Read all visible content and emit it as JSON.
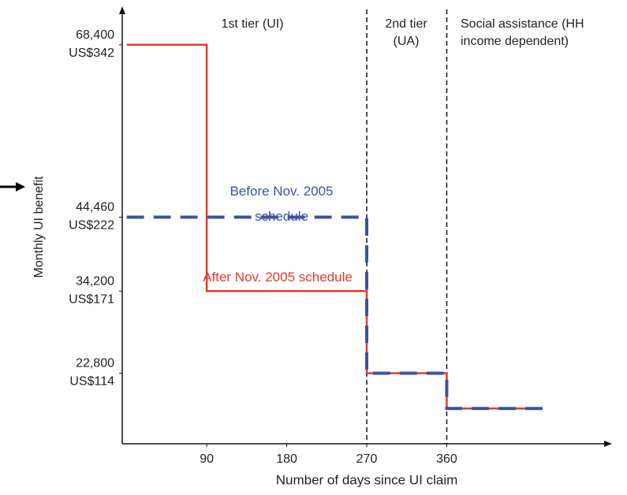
{
  "chart_data": {
    "type": "step",
    "x_label": "Number of days since UI claim",
    "y_label": "Monthly UI benefit",
    "xlim": [
      -5,
      545
    ],
    "ylim": [
      13000,
      73300
    ],
    "xticks": [
      90,
      180,
      270,
      360
    ],
    "yticks": [
      {
        "value": 68400,
        "label": "68,400"
      },
      {
        "value": 44460,
        "label": "44,460"
      },
      {
        "value": 34200,
        "label": "34,200"
      },
      {
        "value": 22800,
        "label": "22,800"
      }
    ],
    "ytick_usd_labels": [
      "US$342",
      "US$222",
      "US$171",
      "US$114"
    ],
    "tier_boundaries": [
      270,
      360
    ],
    "tier_labels": [
      "1st tier (UI)",
      "2nd tier (UA)",
      "Social assistance (HH income dependent)"
    ],
    "series": [
      {
        "name": "After Nov. 2005 schedule",
        "color": "#e8392b",
        "x": [
          0,
          90,
          90,
          270,
          270,
          360,
          360,
          466
        ],
        "values": [
          68400,
          68400,
          34200,
          34200,
          22800,
          22800,
          17900,
          17900
        ]
      },
      {
        "name": "Before Nov. 2005 schedule",
        "color": "#3b53a4",
        "x": [
          0,
          270,
          270,
          360,
          360,
          474
        ],
        "values": [
          44460,
          44460,
          22800,
          22800,
          17900,
          17900
        ]
      }
    ]
  }
}
